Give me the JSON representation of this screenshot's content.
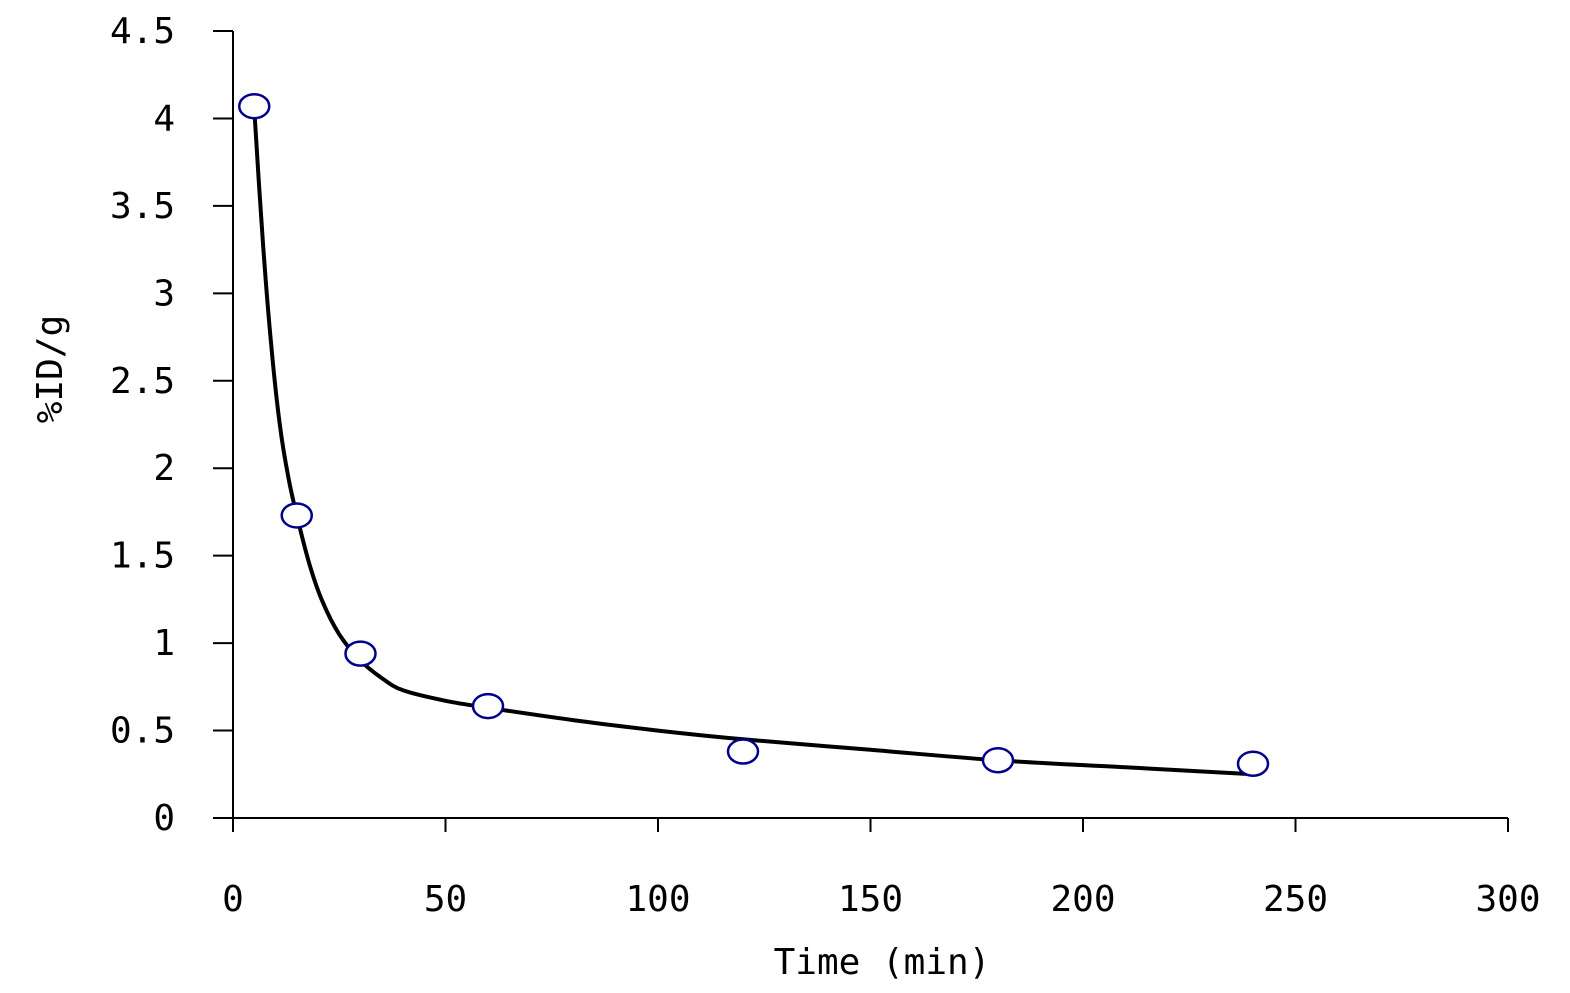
{
  "chart_data": {
    "type": "scatter",
    "title": "",
    "xlabel": "Time (min)",
    "ylabel": "%ID/g",
    "xlim": [
      0,
      300
    ],
    "ylim": [
      0,
      4.5
    ],
    "xticks": [
      0,
      50,
      100,
      150,
      200,
      250,
      300
    ],
    "yticks": [
      0,
      0.5,
      1,
      1.5,
      2,
      2.5,
      3,
      3.5,
      4,
      4.5
    ],
    "xtick_labels": [
      "0",
      "50",
      "100",
      "150",
      "200",
      "250",
      "300"
    ],
    "ytick_labels": [
      "0",
      "0.5",
      "1",
      "1.5",
      "2",
      "2.5",
      "3",
      "3.5",
      "4",
      "4.5"
    ],
    "grid": false,
    "legend": "none",
    "series": [
      {
        "kind": "markers",
        "marker": "open-circle",
        "color": "#00008B",
        "points": [
          {
            "x": 5,
            "y": 4.07
          },
          {
            "x": 15,
            "y": 1.73
          },
          {
            "x": 30,
            "y": 0.94
          },
          {
            "x": 60,
            "y": 0.64
          },
          {
            "x": 120,
            "y": 0.38
          },
          {
            "x": 180,
            "y": 0.33
          },
          {
            "x": 240,
            "y": 0.31
          }
        ]
      },
      {
        "kind": "fit-curve",
        "color": "#000000",
        "points": [
          {
            "x": 5,
            "y": 4.05
          },
          {
            "x": 7,
            "y": 3.3
          },
          {
            "x": 9,
            "y": 2.7
          },
          {
            "x": 11,
            "y": 2.25
          },
          {
            "x": 13,
            "y": 1.95
          },
          {
            "x": 15,
            "y": 1.73
          },
          {
            "x": 18,
            "y": 1.45
          },
          {
            "x": 21,
            "y": 1.24
          },
          {
            "x": 25,
            "y": 1.05
          },
          {
            "x": 30,
            "y": 0.9
          },
          {
            "x": 35,
            "y": 0.8
          },
          {
            "x": 40,
            "y": 0.73
          },
          {
            "x": 50,
            "y": 0.67
          },
          {
            "x": 60,
            "y": 0.63
          },
          {
            "x": 80,
            "y": 0.56
          },
          {
            "x": 100,
            "y": 0.5
          },
          {
            "x": 120,
            "y": 0.45
          },
          {
            "x": 150,
            "y": 0.39
          },
          {
            "x": 180,
            "y": 0.33
          },
          {
            "x": 210,
            "y": 0.29
          },
          {
            "x": 240,
            "y": 0.25
          }
        ]
      }
    ]
  }
}
